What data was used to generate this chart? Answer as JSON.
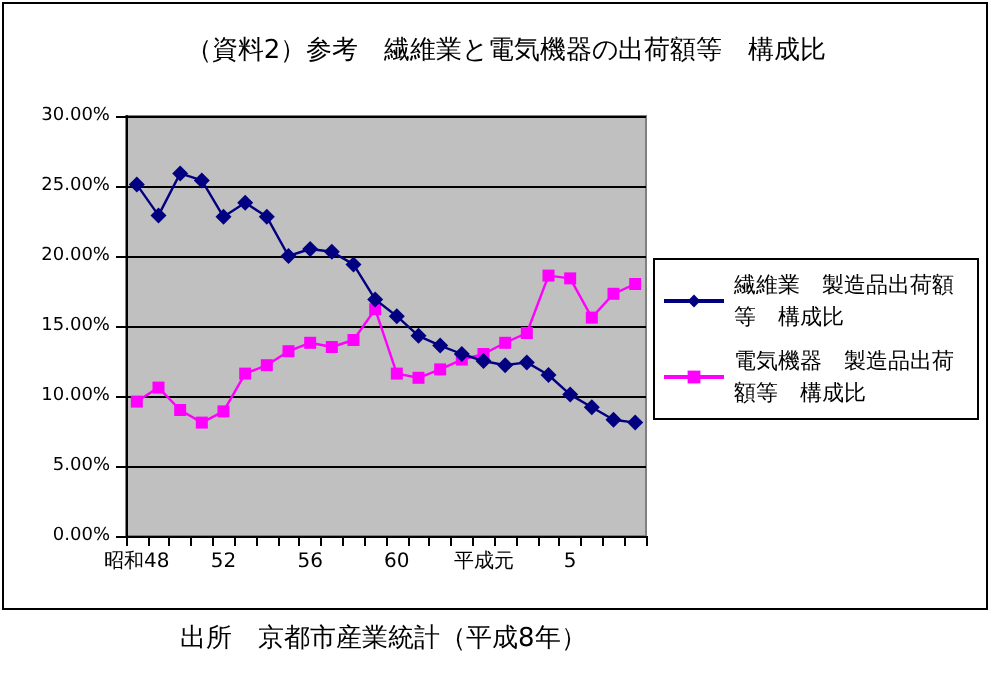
{
  "chart_data": {
    "type": "line",
    "title": "（資料2）参考　繊維業と電気機器の出荷額等　構成比",
    "categories": [
      "昭和48",
      null,
      null,
      null,
      "52",
      null,
      null,
      null,
      "56",
      null,
      null,
      null,
      "60",
      null,
      null,
      null,
      "平成元",
      null,
      null,
      null,
      "5",
      null,
      null,
      null
    ],
    "series": [
      {
        "name": "繊維業　製造品出荷額等　構成比",
        "color": "#000080",
        "marker": "diamond",
        "values": [
          25.1,
          22.9,
          25.9,
          25.4,
          22.8,
          23.8,
          22.8,
          20.0,
          20.5,
          20.3,
          19.4,
          16.9,
          15.7,
          14.3,
          13.6,
          13.0,
          12.5,
          12.2,
          12.4,
          11.5,
          10.1,
          9.2,
          8.3,
          8.1
        ]
      },
      {
        "name": "電気機器　製造品出荷額等　構成比",
        "color": "#ff00ff",
        "marker": "square",
        "values": [
          9.6,
          10.6,
          9.0,
          8.1,
          8.9,
          11.6,
          12.2,
          13.2,
          13.8,
          13.5,
          14.0,
          16.2,
          11.6,
          11.3,
          11.9,
          12.6,
          13.0,
          13.8,
          14.5,
          18.6,
          18.4,
          15.6,
          17.3,
          18.0
        ]
      }
    ],
    "ylim": [
      0,
      30
    ],
    "yticks": [
      {
        "value": 0,
        "label": "0.00%"
      },
      {
        "value": 5,
        "label": "5.00%"
      },
      {
        "value": 10,
        "label": "10.00%"
      },
      {
        "value": 15,
        "label": "15.00%"
      },
      {
        "value": 20,
        "label": "20.00%"
      },
      {
        "value": 25,
        "label": "25.00%"
      },
      {
        "value": 30,
        "label": "30.00%"
      }
    ],
    "grid": "y",
    "legend": "right",
    "annotations": [
      "出所　京都市産業統計（平成8年）"
    ]
  }
}
